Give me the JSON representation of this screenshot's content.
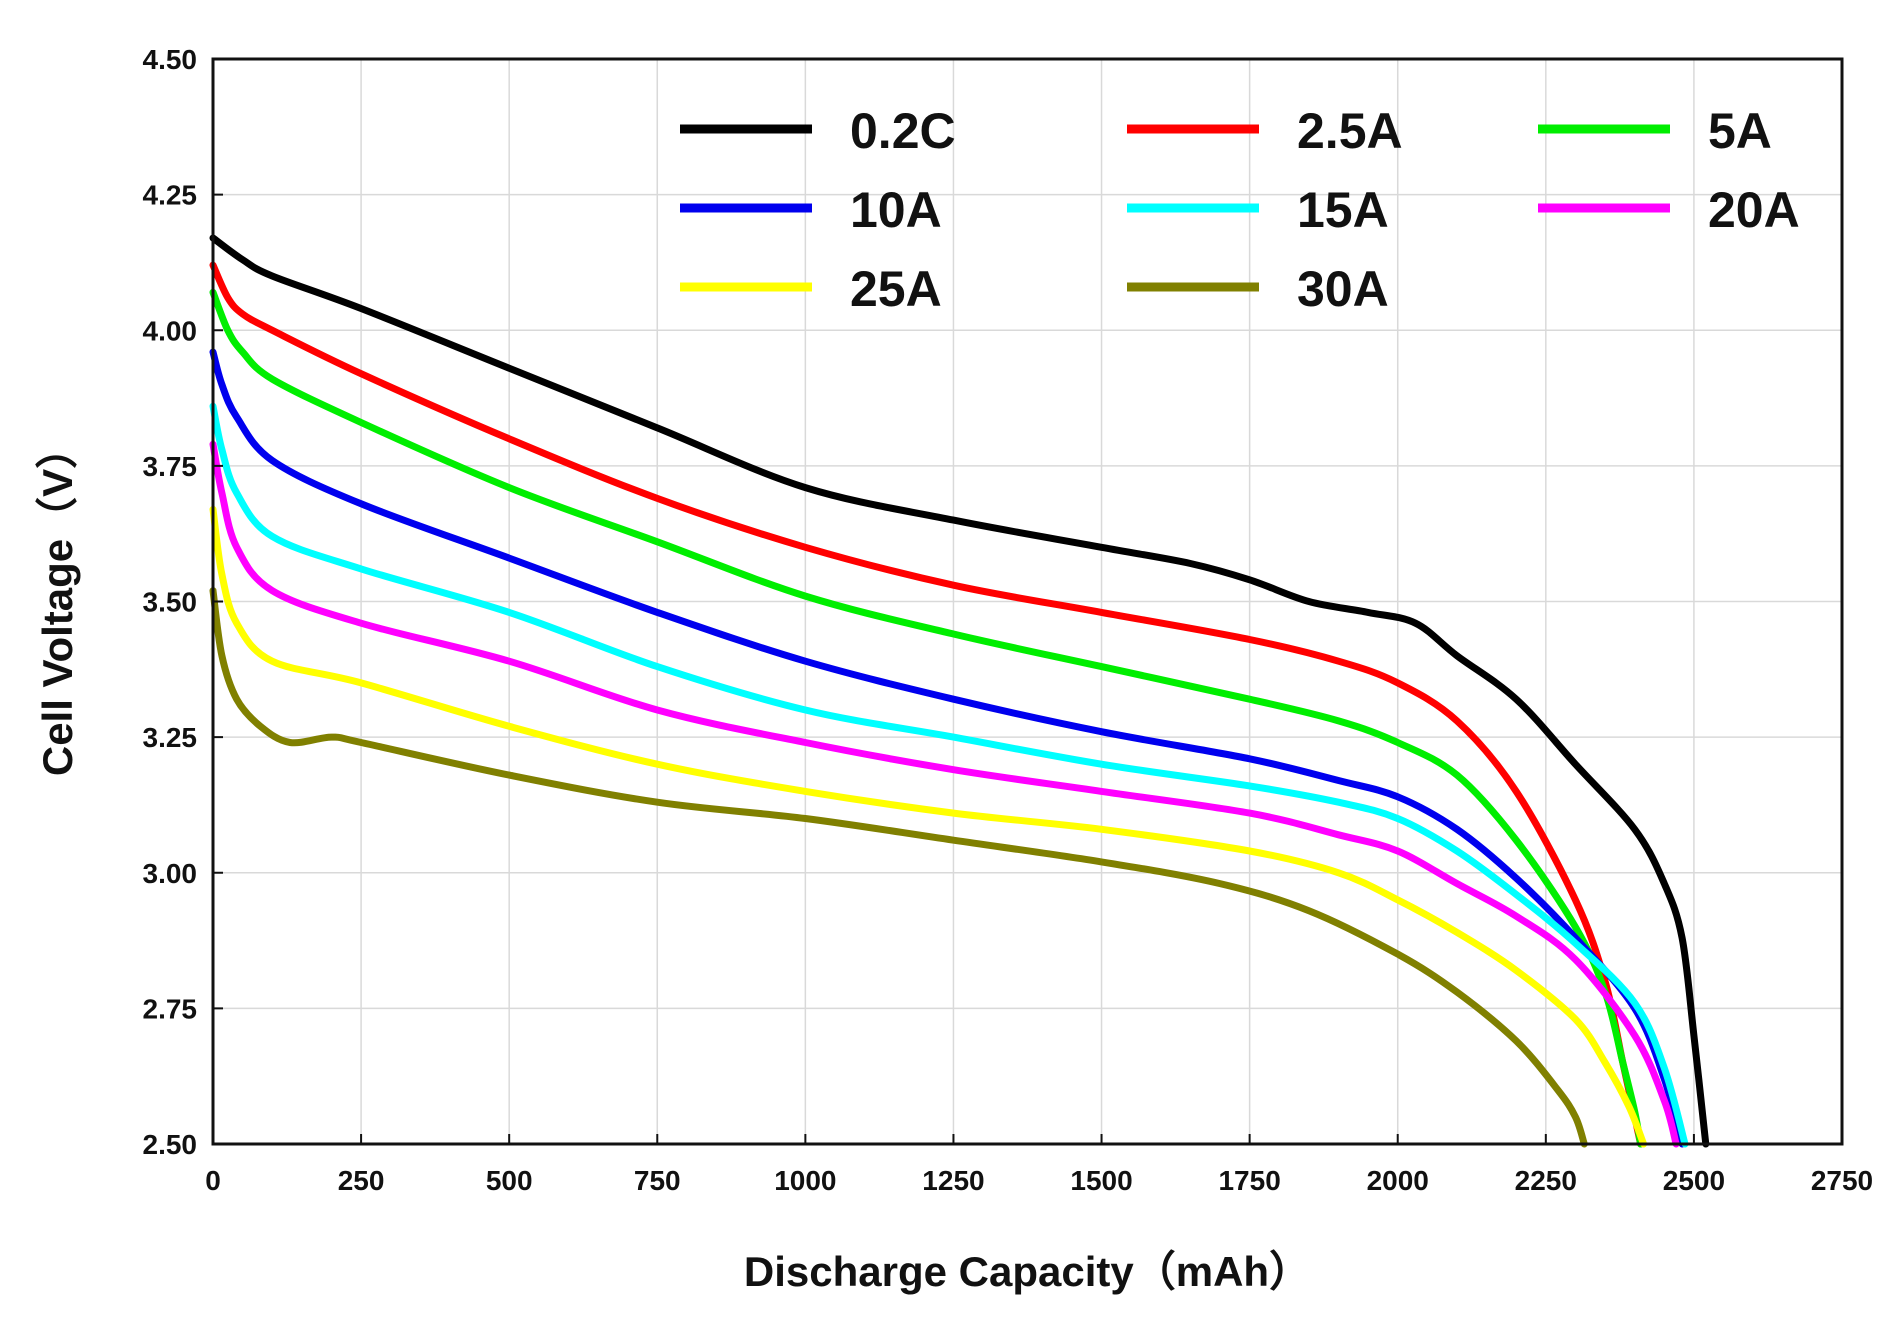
{
  "chart_data": {
    "type": "line",
    "title": "",
    "xlabel": "Discharge Capacity（mAh）",
    "ylabel": "Cell Voltage（V）",
    "xlim": [
      0,
      2750
    ],
    "ylim": [
      2.5,
      4.5
    ],
    "xticks": [
      "0",
      "250",
      "500",
      "750",
      "1000",
      "1250",
      "1500",
      "1750",
      "2000",
      "2250",
      "2500",
      "2750"
    ],
    "yticks": [
      "2.50",
      "2.75",
      "3.00",
      "3.25",
      "3.50",
      "3.75",
      "4.00",
      "4.25",
      "4.50"
    ],
    "grid": true,
    "legend_position": "top-right",
    "series": [
      {
        "name": "0.2C",
        "color": "#000000",
        "x": [
          0,
          50,
          100,
          250,
          500,
          750,
          1000,
          1250,
          1500,
          1650,
          1750,
          1850,
          1950,
          2030,
          2100,
          2200,
          2300,
          2400,
          2450,
          2480,
          2500,
          2520
        ],
        "y": [
          4.17,
          4.13,
          4.1,
          4.04,
          3.93,
          3.82,
          3.71,
          3.65,
          3.6,
          3.57,
          3.54,
          3.5,
          3.48,
          3.46,
          3.4,
          3.32,
          3.2,
          3.08,
          2.98,
          2.88,
          2.7,
          2.5
        ]
      },
      {
        "name": "2.5A",
        "color": "#ff0000",
        "x": [
          0,
          25,
          50,
          100,
          250,
          500,
          750,
          1000,
          1250,
          1500,
          1750,
          1900,
          2000,
          2100,
          2200,
          2300,
          2350,
          2380,
          2400,
          2410
        ],
        "y": [
          4.12,
          4.06,
          4.03,
          4.0,
          3.92,
          3.8,
          3.69,
          3.6,
          3.53,
          3.48,
          3.43,
          3.39,
          3.35,
          3.28,
          3.15,
          2.95,
          2.8,
          2.65,
          2.55,
          2.5
        ]
      },
      {
        "name": "5A",
        "color": "#00ee00",
        "x": [
          0,
          25,
          50,
          100,
          250,
          500,
          750,
          1000,
          1250,
          1500,
          1750,
          1900,
          2000,
          2100,
          2200,
          2300,
          2350,
          2380,
          2400,
          2410
        ],
        "y": [
          4.07,
          4.0,
          3.96,
          3.91,
          3.83,
          3.71,
          3.61,
          3.51,
          3.44,
          3.38,
          3.32,
          3.28,
          3.24,
          3.18,
          3.06,
          2.9,
          2.78,
          2.65,
          2.56,
          2.5
        ]
      },
      {
        "name": "10A",
        "color": "#0000ee",
        "x": [
          0,
          15,
          40,
          100,
          250,
          500,
          750,
          1000,
          1250,
          1500,
          1750,
          1900,
          2000,
          2100,
          2200,
          2300,
          2400,
          2450,
          2480
        ],
        "y": [
          3.96,
          3.9,
          3.84,
          3.76,
          3.68,
          3.58,
          3.48,
          3.39,
          3.32,
          3.26,
          3.21,
          3.17,
          3.14,
          3.08,
          2.99,
          2.88,
          2.75,
          2.62,
          2.5
        ]
      },
      {
        "name": "15A",
        "color": "#00ffff",
        "x": [
          0,
          15,
          40,
          100,
          250,
          500,
          750,
          1000,
          1250,
          1500,
          1750,
          1900,
          2000,
          2100,
          2200,
          2300,
          2400,
          2450,
          2485
        ],
        "y": [
          3.86,
          3.78,
          3.7,
          3.62,
          3.56,
          3.48,
          3.38,
          3.3,
          3.25,
          3.2,
          3.16,
          3.13,
          3.1,
          3.04,
          2.96,
          2.87,
          2.76,
          2.64,
          2.5
        ]
      },
      {
        "name": "20A",
        "color": "#ff00ff",
        "x": [
          0,
          15,
          40,
          100,
          250,
          500,
          750,
          1000,
          1250,
          1500,
          1750,
          1900,
          2000,
          2100,
          2200,
          2300,
          2400,
          2450,
          2470
        ],
        "y": [
          3.79,
          3.7,
          3.6,
          3.52,
          3.46,
          3.39,
          3.3,
          3.24,
          3.19,
          3.15,
          3.11,
          3.07,
          3.04,
          2.98,
          2.92,
          2.84,
          2.7,
          2.58,
          2.5
        ]
      },
      {
        "name": "25A",
        "color": "#ffff00",
        "x": [
          0,
          15,
          40,
          100,
          250,
          500,
          750,
          1000,
          1250,
          1500,
          1750,
          1900,
          2000,
          2100,
          2200,
          2300,
          2350,
          2390,
          2415
        ],
        "y": [
          3.67,
          3.55,
          3.46,
          3.39,
          3.35,
          3.27,
          3.2,
          3.15,
          3.11,
          3.08,
          3.04,
          3.0,
          2.95,
          2.89,
          2.82,
          2.73,
          2.65,
          2.57,
          2.5
        ]
      },
      {
        "name": "30A",
        "color": "#808000",
        "x": [
          0,
          15,
          40,
          80,
          130,
          200,
          250,
          500,
          750,
          1000,
          1250,
          1500,
          1700,
          1850,
          2000,
          2100,
          2200,
          2270,
          2300,
          2315
        ],
        "y": [
          3.52,
          3.4,
          3.32,
          3.27,
          3.24,
          3.25,
          3.24,
          3.18,
          3.13,
          3.1,
          3.06,
          3.02,
          2.98,
          2.93,
          2.85,
          2.78,
          2.69,
          2.6,
          2.55,
          2.5
        ]
      }
    ]
  }
}
